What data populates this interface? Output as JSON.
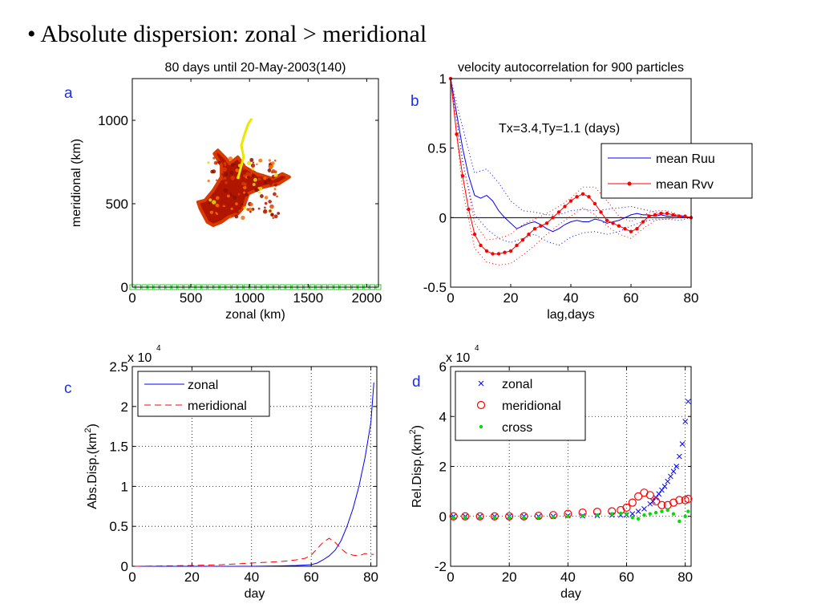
{
  "slide": {
    "bullet": "•",
    "title": "Absolute dispersion: zonal > meridional"
  },
  "chart_data": [
    {
      "id": "a",
      "panel_letter": "a",
      "type": "scatter",
      "title": "80 days until 20-May-2003(140)",
      "xlabel": "zonal (km)",
      "ylabel": "meridional (km)",
      "xlim": [
        0,
        2100
      ],
      "ylim": [
        0,
        1250
      ],
      "xticks": [
        "0",
        "500",
        "1000",
        "1500",
        "2000"
      ],
      "yticks": [
        "0",
        "500",
        "1000"
      ],
      "grid": false,
      "initial_positions": {
        "description_color": "#20d020",
        "y": 0,
        "x_start": 0,
        "x_end": 2100,
        "count": 42
      },
      "trajectory_cloud": {
        "colors": [
          "#b01500",
          "#d83a00",
          "#8a1000",
          "#ff6a00"
        ],
        "outline": [
          [
            580,
            470
          ],
          [
            560,
            510
          ],
          [
            620,
            520
          ],
          [
            690,
            580
          ],
          [
            760,
            660
          ],
          [
            760,
            730
          ],
          [
            700,
            800
          ],
          [
            730,
            820
          ],
          [
            800,
            770
          ],
          [
            830,
            740
          ],
          [
            900,
            780
          ],
          [
            960,
            720
          ],
          [
            1060,
            680
          ],
          [
            1200,
            650
          ],
          [
            1280,
            680
          ],
          [
            1340,
            660
          ],
          [
            1250,
            620
          ],
          [
            1120,
            600
          ],
          [
            990,
            560
          ],
          [
            950,
            480
          ],
          [
            900,
            440
          ],
          [
            820,
            420
          ],
          [
            760,
            390
          ],
          [
            690,
            370
          ],
          [
            640,
            390
          ]
        ],
        "highlight_colors": [
          "#e0e010",
          "#40c040",
          "#30a0e0"
        ]
      },
      "yellow_trajectory": {
        "color": "#e8e800",
        "points": [
          [
            900,
            650
          ],
          [
            920,
            700
          ],
          [
            950,
            780
          ],
          [
            930,
            850
          ],
          [
            960,
            920
          ],
          [
            990,
            980
          ],
          [
            1020,
            1010
          ]
        ]
      }
    },
    {
      "id": "b",
      "panel_letter": "b",
      "type": "line",
      "title": "velocity autocorrelation for 900 particles",
      "xlabel": "lag,days",
      "ylabel": "",
      "xlim": [
        0,
        80
      ],
      "ylim": [
        -0.5,
        1
      ],
      "xticks": [
        "0",
        "20",
        "40",
        "60",
        "80"
      ],
      "yticks": [
        "-0.5",
        "0",
        "0.5",
        "1"
      ],
      "grid": false,
      "annotation": "Tx=3.4,Ty=1.1 (days)",
      "legend": {
        "position": "top-right",
        "entries": [
          "mean Ruu",
          "mean Rvv"
        ]
      },
      "series": [
        {
          "name": "mean Ruu",
          "color": "#0000ff",
          "style": "solid",
          "x": [
            0,
            2,
            4,
            6,
            8,
            10,
            12,
            14,
            16,
            18,
            20,
            22,
            24,
            26,
            28,
            30,
            32,
            34,
            36,
            38,
            40,
            42,
            44,
            46,
            48,
            50,
            52,
            54,
            56,
            58,
            60,
            62,
            64,
            66,
            68,
            70,
            72,
            74,
            76,
            78,
            80
          ],
          "y": [
            1,
            0.75,
            0.5,
            0.3,
            0.16,
            0.14,
            0.16,
            0.12,
            0.05,
            0,
            -0.04,
            -0.08,
            -0.06,
            -0.04,
            -0.03,
            -0.05,
            -0.08,
            -0.1,
            -0.08,
            -0.05,
            -0.03,
            -0.02,
            -0.03,
            -0.03,
            -0.01,
            -0.02,
            -0.04,
            -0.03,
            -0.02,
            0,
            0.02,
            0.03,
            0.02,
            0.02,
            0.01,
            0.02,
            0.01,
            0.01,
            0.01,
            0,
            0
          ]
        },
        {
          "name": "Ruu upper bound",
          "color": "#0000ff",
          "style": "dotted",
          "x": [
            0,
            4,
            8,
            12,
            16,
            20,
            24,
            28,
            32,
            36,
            40,
            44,
            48,
            52,
            56,
            60,
            64,
            68,
            72,
            76,
            80
          ],
          "y": [
            1,
            0.65,
            0.32,
            0.35,
            0.25,
            0.12,
            0.05,
            0.04,
            0.02,
            0.02,
            0.05,
            0.06,
            0.05,
            0.06,
            0.07,
            0.08,
            0.06,
            0.04,
            0.03,
            0.02,
            0
          ]
        },
        {
          "name": "Ruu lower bound",
          "color": "#0000ff",
          "style": "dotted",
          "x": [
            0,
            4,
            8,
            12,
            16,
            20,
            24,
            28,
            32,
            36,
            40,
            44,
            48,
            52,
            56,
            60,
            64,
            68,
            72,
            76,
            80
          ],
          "y": [
            1,
            0.4,
            0.02,
            -0.08,
            -0.15,
            -0.18,
            -0.15,
            -0.12,
            -0.17,
            -0.2,
            -0.14,
            -0.11,
            -0.1,
            -0.12,
            -0.1,
            -0.06,
            -0.03,
            -0.01,
            -0.01,
            -0.02,
            0
          ]
        },
        {
          "name": "mean Rvv",
          "color": "#ff0000",
          "style": "solid-marker",
          "x": [
            0,
            2,
            4,
            6,
            8,
            10,
            12,
            14,
            16,
            18,
            20,
            22,
            24,
            26,
            28,
            30,
            32,
            34,
            36,
            38,
            40,
            42,
            44,
            46,
            48,
            50,
            52,
            54,
            56,
            58,
            60,
            62,
            64,
            66,
            68,
            70,
            72,
            74,
            76,
            78,
            80
          ],
          "y": [
            1,
            0.6,
            0.3,
            0.06,
            -0.12,
            -0.2,
            -0.24,
            -0.26,
            -0.26,
            -0.25,
            -0.24,
            -0.2,
            -0.16,
            -0.12,
            -0.08,
            -0.06,
            -0.04,
            0,
            0.04,
            0.08,
            0.12,
            0.15,
            0.17,
            0.15,
            0.1,
            0.04,
            -0.02,
            -0.04,
            -0.06,
            -0.08,
            -0.1,
            -0.08,
            -0.03,
            0.01,
            0.02,
            0.03,
            0.03,
            0.02,
            0.01,
            0.01,
            0
          ]
        },
        {
          "name": "Rvv upper bound",
          "color": "#ff0000",
          "style": "dotted",
          "x": [
            0,
            4,
            8,
            12,
            16,
            20,
            24,
            28,
            32,
            36,
            40,
            44,
            48,
            52,
            56,
            60,
            64,
            68,
            72,
            76,
            80
          ],
          "y": [
            1,
            0.42,
            -0.04,
            -0.16,
            -0.15,
            -0.12,
            -0.05,
            -0.01,
            0.03,
            0.08,
            0.14,
            0.22,
            0.22,
            0.12,
            0.01,
            -0.03,
            0.02,
            0.05,
            0.05,
            0.02,
            0
          ]
        },
        {
          "name": "Rvv lower bound",
          "color": "#ff0000",
          "style": "dotted",
          "x": [
            0,
            4,
            8,
            12,
            16,
            20,
            24,
            28,
            32,
            36,
            40,
            44,
            48,
            52,
            56,
            60,
            64,
            68,
            72,
            76,
            80
          ],
          "y": [
            1,
            0.2,
            -0.22,
            -0.32,
            -0.34,
            -0.33,
            -0.27,
            -0.2,
            -0.12,
            -0.05,
            0.01,
            0.07,
            0.02,
            -0.06,
            -0.12,
            -0.15,
            -0.08,
            -0.02,
            -0.01,
            0,
            0
          ]
        }
      ]
    },
    {
      "id": "c",
      "panel_letter": "c",
      "type": "line",
      "title": "",
      "xlabel": "day",
      "ylabel": "Abs.Disp.(km",
      "ylabel_sup": "2",
      "ylabel_close": ")",
      "scale_prefix": "x 10",
      "scale_exp": "4",
      "xlim": [
        0,
        82
      ],
      "ylim": [
        0,
        2.5
      ],
      "xticks": [
        "0",
        "20",
        "40",
        "60",
        "80"
      ],
      "yticks": [
        "0",
        "0.5",
        "1",
        "1.5",
        "2",
        "2.5"
      ],
      "grid": true,
      "legend": {
        "position": "top-left",
        "entries": [
          "zonal",
          "meridional"
        ]
      },
      "series": [
        {
          "name": "zonal",
          "color": "#0000ff",
          "style": "solid",
          "x": [
            1,
            10,
            20,
            30,
            40,
            50,
            55,
            60,
            62,
            64,
            66,
            68,
            70,
            72,
            74,
            76,
            78,
            80,
            81
          ],
          "y": [
            0,
            0,
            0,
            0,
            0,
            0.005,
            0.01,
            0.02,
            0.04,
            0.08,
            0.13,
            0.2,
            0.32,
            0.5,
            0.72,
            1.0,
            1.35,
            1.8,
            2.3
          ]
        },
        {
          "name": "meridional",
          "color": "#ff0000",
          "style": "dashed",
          "x": [
            1,
            10,
            20,
            30,
            35,
            40,
            45,
            50,
            55,
            58,
            60,
            62,
            64,
            66,
            68,
            70,
            72,
            74,
            76,
            78,
            80,
            81
          ],
          "y": [
            0,
            0.005,
            0.01,
            0.02,
            0.03,
            0.04,
            0.05,
            0.06,
            0.08,
            0.1,
            0.14,
            0.22,
            0.3,
            0.35,
            0.3,
            0.22,
            0.16,
            0.14,
            0.13,
            0.16,
            0.15,
            0.15
          ]
        }
      ]
    },
    {
      "id": "d",
      "panel_letter": "d",
      "type": "scatter",
      "title": "",
      "xlabel": "day",
      "ylabel": "Rel.Disp.(km",
      "ylabel_sup": "2",
      "ylabel_close": ")",
      "scale_prefix": "x 10",
      "scale_exp": "4",
      "xlim": [
        0,
        82
      ],
      "ylim": [
        -2,
        6
      ],
      "xticks": [
        "0",
        "20",
        "40",
        "60",
        "80"
      ],
      "yticks": [
        "-2",
        "0",
        "2",
        "4",
        "6"
      ],
      "grid": true,
      "legend": {
        "position": "top-left",
        "entries": [
          "zonal",
          "meridional",
          "cross"
        ]
      },
      "series": [
        {
          "name": "zonal",
          "color": "#0000ff",
          "marker": "x",
          "x": [
            1,
            5,
            10,
            15,
            20,
            25,
            30,
            35,
            40,
            45,
            50,
            55,
            58,
            60,
            62,
            64,
            66,
            68,
            69,
            70,
            71,
            72,
            73,
            74,
            75,
            76,
            77,
            78,
            79,
            80,
            81
          ],
          "y": [
            0,
            0,
            0,
            0,
            0,
            0,
            0,
            0,
            0.02,
            0.02,
            0.03,
            0.05,
            0.05,
            0.05,
            0.1,
            0.2,
            0.3,
            0.5,
            0.6,
            0.75,
            0.9,
            1.05,
            1.2,
            1.4,
            1.6,
            1.8,
            2.0,
            2.4,
            2.9,
            3.8,
            4.6
          ]
        },
        {
          "name": "meridional",
          "color": "#ff0000",
          "marker": "o",
          "x": [
            1,
            5,
            10,
            15,
            20,
            25,
            30,
            35,
            40,
            45,
            50,
            55,
            58,
            60,
            62,
            64,
            66,
            68,
            70,
            72,
            74,
            76,
            78,
            80,
            81
          ],
          "y": [
            0,
            0,
            0,
            0,
            0,
            0,
            0.02,
            0.05,
            0.1,
            0.15,
            0.18,
            0.2,
            0.25,
            0.35,
            0.55,
            0.8,
            0.95,
            0.85,
            0.6,
            0.45,
            0.45,
            0.55,
            0.65,
            0.65,
            0.7
          ]
        },
        {
          "name": "cross",
          "color": "#00dd00",
          "marker": ".",
          "x": [
            1,
            5,
            10,
            15,
            20,
            25,
            30,
            35,
            40,
            45,
            50,
            55,
            58,
            60,
            62,
            64,
            66,
            68,
            70,
            72,
            74,
            76,
            78,
            80,
            81
          ],
          "y": [
            -0.05,
            -0.05,
            -0.05,
            -0.05,
            -0.05,
            -0.05,
            -0.05,
            -0.03,
            0,
            0.02,
            0.05,
            0.1,
            0.12,
            0.1,
            -0.05,
            -0.1,
            0.05,
            0.1,
            0.15,
            0.2,
            0.25,
            0.1,
            -0.2,
            0,
            0.2
          ]
        }
      ]
    }
  ]
}
